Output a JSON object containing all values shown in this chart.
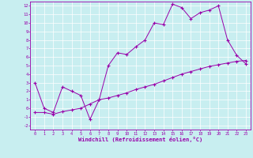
{
  "x_range": [
    -0.5,
    23.5
  ],
  "y_range": [
    -2.5,
    12.5
  ],
  "x_ticks": [
    0,
    1,
    2,
    3,
    4,
    5,
    6,
    7,
    8,
    9,
    10,
    11,
    12,
    13,
    14,
    15,
    16,
    17,
    18,
    19,
    20,
    21,
    22,
    23
  ],
  "y_ticks": [
    -2,
    -1,
    0,
    1,
    2,
    3,
    4,
    5,
    6,
    7,
    8,
    9,
    10,
    11,
    12
  ],
  "line1_x": [
    0,
    1,
    2,
    3,
    4,
    5,
    6,
    7,
    8,
    9,
    10,
    11,
    12,
    13,
    14,
    15,
    16,
    17,
    18,
    19,
    20,
    21,
    22,
    23
  ],
  "line1_y": [
    3.0,
    0.0,
    -0.5,
    2.5,
    2.0,
    1.5,
    -1.3,
    1.0,
    5.0,
    6.5,
    6.3,
    7.2,
    8.0,
    10.0,
    9.8,
    12.2,
    11.8,
    10.5,
    11.2,
    11.5,
    12.0,
    8.0,
    6.2,
    5.2
  ],
  "line2_x": [
    0,
    1,
    2,
    3,
    4,
    5,
    6,
    7,
    8,
    9,
    10,
    11,
    12,
    13,
    14,
    15,
    16,
    17,
    18,
    19,
    20,
    21,
    22,
    23
  ],
  "line2_y": [
    -0.5,
    -0.5,
    -0.7,
    -0.4,
    -0.2,
    0.0,
    0.5,
    1.0,
    1.2,
    1.5,
    1.8,
    2.2,
    2.5,
    2.8,
    3.2,
    3.6,
    4.0,
    4.3,
    4.6,
    4.9,
    5.1,
    5.3,
    5.5,
    5.6
  ],
  "line_color": "#9900aa",
  "bg_color": "#c8eef0",
  "grid_color": "#aadddd",
  "xlabel": "Windchill (Refroidissement éolien,°C)",
  "marker": "+"
}
